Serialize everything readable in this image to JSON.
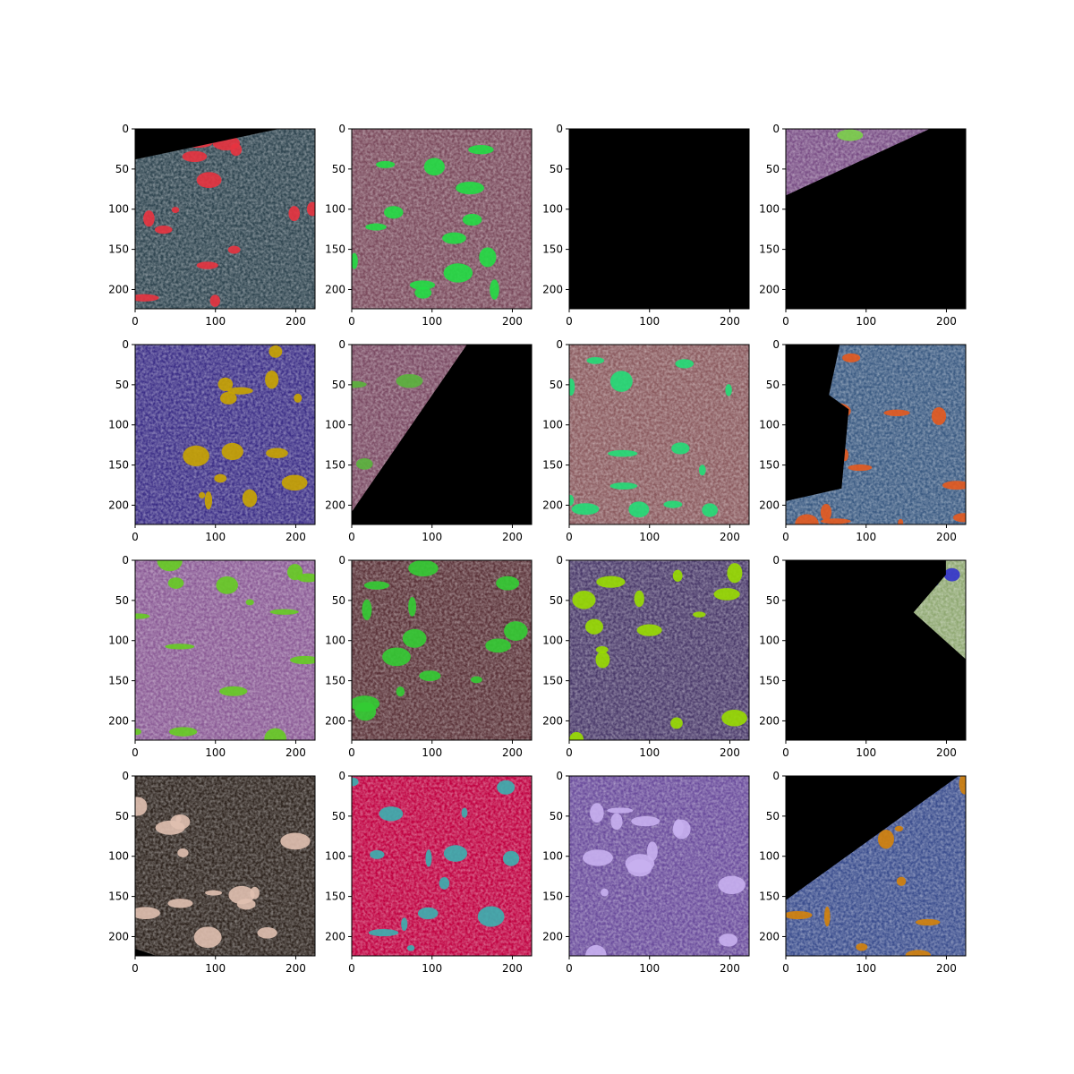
{
  "figure": {
    "grid_rows": 4,
    "grid_cols": 4,
    "axis_x_ticks": [
      "0",
      "100",
      "200"
    ],
    "axis_y_ticks": [
      "0",
      "50",
      "100",
      "150",
      "200"
    ],
    "tick_values_x": [
      0,
      100,
      200
    ],
    "tick_values_y": [
      0,
      50,
      100,
      150,
      200
    ],
    "image_extent": [
      0,
      224
    ],
    "panels": [
      {
        "name": "grey-blue-section-red-pores",
        "base": "#2f4550",
        "spots": "#e8333f",
        "mask": "top-left-wedge"
      },
      {
        "name": "pink-section-green-pores",
        "base": "#7a4a5c",
        "spots": "#22dd44",
        "mask": "none"
      },
      {
        "name": "all-black-section",
        "base": "#000000",
        "spots": "#000000",
        "mask": "full"
      },
      {
        "name": "purple-sliver-section",
        "base": "#7a4f86",
        "spots": "#7bd04a",
        "mask": "bottom-right-diagonal"
      },
      {
        "name": "indigo-section-yellow-pores",
        "base": "#3c2f87",
        "spots": "#c9a400",
        "mask": "none"
      },
      {
        "name": "mauve-section-diagonal-cut",
        "base": "#7a4a63",
        "spots": "#5ab43c",
        "mask": "bottom-right-diagonal-steep"
      },
      {
        "name": "rose-section-green-pores",
        "base": "#8a5a5e",
        "spots": "#22dd77",
        "mask": "none"
      },
      {
        "name": "blue-section-orange-pores",
        "base": "#3a5a82",
        "spots": "#e65a1e",
        "mask": "left-polygon"
      },
      {
        "name": "violet-section-lime-pores",
        "base": "#8a5a95",
        "spots": "#66cc22",
        "mask": "none"
      },
      {
        "name": "dark-rose-section",
        "base": "#5a3238",
        "spots": "#33cc33",
        "mask": "none"
      },
      {
        "name": "purple-section-lime-grain",
        "base": "#4a3a6a",
        "spots": "#99dd00",
        "mask": "none"
      },
      {
        "name": "green-fragment-section",
        "base": "#8fa872",
        "spots": "#3333cc",
        "mask": "mostly-black-fragment"
      },
      {
        "name": "dark-brown-ooid-section",
        "base": "#2e241e",
        "spots": "#e0c0b0",
        "mask": "bottom-left-corner"
      },
      {
        "name": "crimson-section-cyan-rim",
        "base": "#c00040",
        "spots": "#3ab0b0",
        "mask": "none"
      },
      {
        "name": "lavender-section",
        "base": "#6a4c9c",
        "spots": "#c8b0f0",
        "mask": "none"
      },
      {
        "name": "blue-section-orange-spots",
        "base": "#3b4e8e",
        "spots": "#d4820a",
        "mask": "top-left-diagonal"
      }
    ]
  }
}
